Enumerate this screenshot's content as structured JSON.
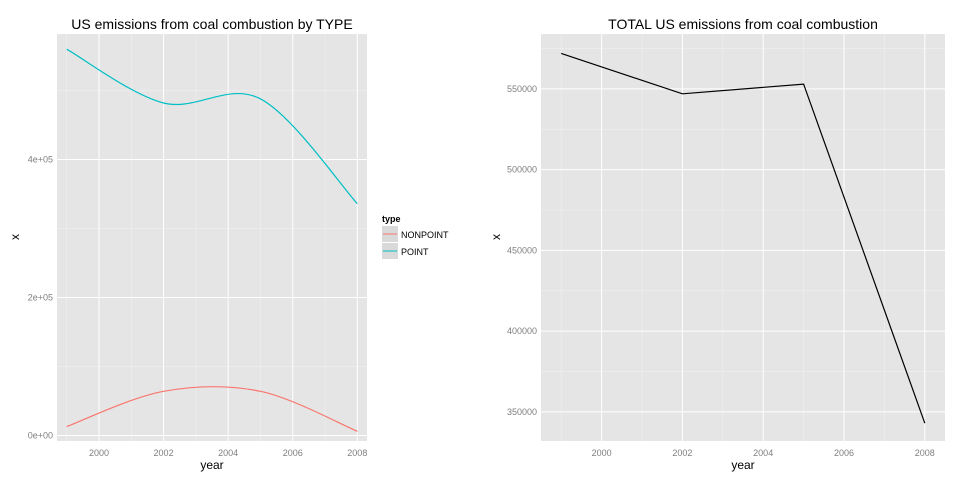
{
  "chart_data": [
    {
      "type": "line",
      "title": "US emissions from coal combustion by TYPE",
      "xlabel": "year",
      "ylabel": "x",
      "xlim": [
        1998.7,
        2008.3
      ],
      "ylim": [
        -8000,
        582000
      ],
      "x_ticks": [
        2000,
        2002,
        2004,
        2006,
        2008
      ],
      "x_tick_labels": [
        "2000",
        "2002",
        "2004",
        "2006",
        "2008"
      ],
      "y_ticks": [
        0,
        200000,
        400000
      ],
      "y_tick_labels": [
        "0e+00",
        "2e+05",
        "4e+05"
      ],
      "grid": true,
      "smooth": true,
      "legend": {
        "title": "type",
        "placement": "right"
      },
      "series": [
        {
          "name": "NONPOINT",
          "color": "#F8766D",
          "x": [
            1999,
            2002,
            2005,
            2008
          ],
          "y": [
            13000,
            64000,
            64000,
            6000
          ]
        },
        {
          "name": "POINT",
          "color": "#00BFC4",
          "x": [
            1999,
            2002,
            2005,
            2008
          ],
          "y": [
            560000,
            482000,
            488000,
            336000
          ]
        }
      ]
    },
    {
      "type": "line",
      "title": "TOTAL US emissions from coal combustion",
      "xlabel": "year",
      "ylabel": "x",
      "xlim": [
        1998.5,
        2008.5
      ],
      "ylim": [
        332000,
        584000
      ],
      "x_ticks": [
        2000,
        2002,
        2004,
        2006,
        2008
      ],
      "x_tick_labels": [
        "2000",
        "2002",
        "2004",
        "2006",
        "2008"
      ],
      "y_ticks": [
        350000,
        400000,
        450000,
        500000,
        550000
      ],
      "y_tick_labels": [
        "350000",
        "400000",
        "450000",
        "500000",
        "550000"
      ],
      "grid": true,
      "smooth": false,
      "series": [
        {
          "color": "#000000",
          "x": [
            1999,
            2002,
            2005,
            2008
          ],
          "y": [
            572000,
            547000,
            553000,
            343000
          ]
        }
      ]
    }
  ]
}
